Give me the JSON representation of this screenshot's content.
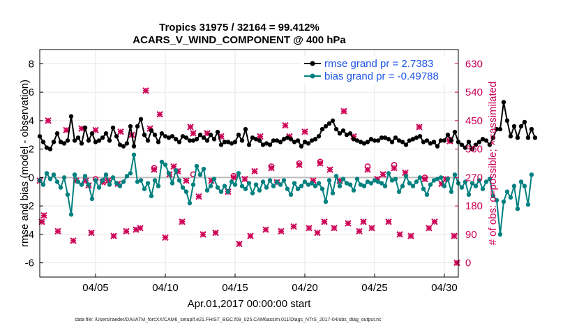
{
  "chart_data": {
    "type": "line",
    "title_line1": "Tropics 31975 / 32164 = 99.412%",
    "title_line2": "ACARS_V_WIND_COMPONENT @ 400 hPa",
    "xlabel": "Apr.01,2017 00:00:00 start",
    "ylabel_left": "rmse and bias (model - observation)",
    "ylabel_right": "# of obs: o=possible; ×=assimilated",
    "footer": "data file: /Users/raeder/DAI/ATM_forcXX/CAM6_setup/f.e21.FHIST_BGC.f09_025.CAM6assim.011/Diags_NTrS_2017-04/obs_diag_output.nc",
    "x_range_days": [
      1,
      31
    ],
    "y_left_range": [
      -7,
      9
    ],
    "y_left_ticks": [
      "-6",
      "-4",
      "-2",
      "0",
      "2",
      "4",
      "6",
      "8"
    ],
    "y_right_range": [
      -45,
      675
    ],
    "y_right_ticks": [
      "0",
      "90",
      "180",
      "270",
      "360",
      "450",
      "540",
      "630"
    ],
    "x_ticks": [
      {
        "day": 5,
        "label": "04/05"
      },
      {
        "day": 10,
        "label": "04/10"
      },
      {
        "day": 15,
        "label": "04/15"
      },
      {
        "day": 20,
        "label": "04/20"
      },
      {
        "day": 25,
        "label": "04/25"
      },
      {
        "day": 30,
        "label": "04/30"
      }
    ],
    "grid": true,
    "legend_position": "top-right",
    "colors": {
      "rmse": "#000000",
      "bias": "#00807f",
      "obs": "#cc0055",
      "legend_text": "#1f55e8",
      "zero_line": "#bbbbbb"
    },
    "series": [
      {
        "name": "rmse grand pr = 2.7383",
        "axis": "left",
        "values": [
          2.9,
          2.5,
          2.1,
          2.0,
          2.5,
          3.1,
          2.5,
          2.4,
          2.6,
          4.3,
          2.6,
          2.8,
          2.4,
          3.5,
          2.6,
          3.1,
          2.5,
          2.6,
          2.8,
          3.1,
          2.6,
          3.5,
          2.9,
          2.3,
          2.2,
          2.4,
          3.6,
          2.2,
          3.6,
          4.1,
          3.0,
          2.6,
          3.3,
          3.0,
          2.5,
          3.1,
          2.9,
          2.8,
          2.9,
          2.7,
          2.5,
          2.9,
          2.8,
          2.6,
          2.6,
          2.7,
          3.0,
          2.8,
          2.6,
          3.0,
          2.7,
          3.2,
          2.3,
          2.5,
          2.5,
          2.4,
          2.5,
          3.0,
          2.6,
          3.4,
          2.3,
          2.8,
          2.7,
          2.6,
          2.3,
          2.4,
          2.3,
          2.6,
          2.6,
          2.5,
          2.7,
          2.8,
          2.7,
          2.5,
          2.6,
          2.2,
          2.5,
          2.4,
          2.6,
          2.7,
          2.9,
          3.4,
          3.6,
          3.8,
          4.0,
          3.4,
          3.1,
          3.3,
          3.0,
          3.1,
          2.7,
          2.6,
          2.5,
          2.4,
          2.5,
          2.7,
          2.6,
          2.6,
          2.8,
          2.8,
          2.7,
          2.5,
          2.8,
          2.6,
          2.5,
          2.3,
          2.6,
          2.7,
          2.8,
          2.9,
          2.5,
          2.6,
          2.4,
          2.5,
          2.2,
          2.6,
          2.6,
          3.0,
          2.6,
          3.2,
          2.5,
          2.3,
          2.1,
          2.5,
          2.0,
          2.3,
          2.5,
          2.7,
          2.6,
          2.3,
          2.8,
          3.4,
          3.4,
          5.3,
          4.0,
          2.9,
          3.6,
          2.8,
          3.6,
          3.9,
          2.8,
          3.4,
          2.8
        ],
        "x_start": 1.0,
        "x_step": 0.25
      },
      {
        "name": "bias grand pr = -0.49788",
        "axis": "left",
        "values": [
          -0.2,
          -0.5,
          0.3,
          -0.1,
          0.2,
          -0.3,
          -0.7,
          0.0,
          -1.2,
          -2.6,
          0.2,
          -0.3,
          -0.5,
          0.1,
          -0.5,
          -1.5,
          -0.2,
          -0.7,
          -0.2,
          0.2,
          -0.5,
          0.0,
          -0.4,
          -0.6,
          -0.3,
          0.1,
          0.3,
          1.6,
          -0.3,
          -0.2,
          -0.8,
          -0.4,
          -1.3,
          -0.2,
          -0.6,
          1.1,
          0.9,
          0.3,
          -0.4,
          0.5,
          -0.2,
          -0.7,
          -1.0,
          -1.8,
          -0.5,
          0.8,
          0.2,
          0.6,
          -0.9,
          -0.6,
          -0.1,
          -0.7,
          -1.0,
          -0.6,
          -1.0,
          -0.3,
          -0.5,
          0.3,
          -0.6,
          -0.8,
          -0.4,
          -1.1,
          -0.5,
          -0.9,
          -0.3,
          -0.7,
          -0.2,
          -0.6,
          -0.3,
          -0.5,
          -0.2,
          -0.8,
          -1.2,
          -0.4,
          -0.8,
          -0.6,
          -0.3,
          -0.5,
          -0.4,
          -0.6,
          -0.4,
          -0.8,
          -1.7,
          -0.2,
          -1.1,
          0.1,
          -0.6,
          -0.1,
          -0.4,
          -0.5,
          -0.9,
          -0.1,
          -0.5,
          -0.6,
          -0.3,
          -0.4,
          -0.2,
          -0.3,
          -0.4,
          -0.6,
          0.3,
          -0.2,
          -0.1,
          -1.0,
          -0.6,
          0.1,
          -0.4,
          -0.6,
          -0.3,
          0.0,
          -0.8,
          -1.2,
          -0.5,
          -0.2,
          -0.1,
          0.0,
          -0.6,
          -0.1,
          -1.0,
          0.2,
          -0.4,
          -0.7,
          -0.3,
          -1.2,
          -0.4,
          -0.6,
          -0.2,
          -0.8,
          -0.3,
          -0.1,
          -1.3,
          -1.6,
          -4.0,
          -1.7,
          -1.0,
          -1.4,
          -0.6,
          -2.2,
          -0.3,
          -0.6,
          -1.9,
          0.2
        ],
        "x_start": 1.0,
        "x_step": 0.25
      },
      {
        "name": "obs assimilated",
        "axis": "right",
        "marker": "x",
        "points": [
          [
            1.0,
            260
          ],
          [
            1.15,
            130
          ],
          [
            1.3,
            150
          ],
          [
            1.6,
            450
          ],
          [
            2.3,
            100
          ],
          [
            2.9,
            420
          ],
          [
            3.4,
            70
          ],
          [
            3.6,
            260
          ],
          [
            4.0,
            425
          ],
          [
            4.3,
            260
          ],
          [
            4.5,
            245
          ],
          [
            4.7,
            95
          ],
          [
            5.0,
            420
          ],
          [
            5.5,
            255
          ],
          [
            5.9,
            260
          ],
          [
            6.3,
            85
          ],
          [
            6.6,
            250
          ],
          [
            6.8,
            415
          ],
          [
            7.2,
            100
          ],
          [
            7.6,
            405
          ],
          [
            7.9,
            105
          ],
          [
            8.2,
            110
          ],
          [
            8.6,
            545
          ],
          [
            8.9,
            425
          ],
          [
            9.2,
            295
          ],
          [
            9.6,
            470
          ],
          [
            10.0,
            80
          ],
          [
            10.3,
            280
          ],
          [
            10.6,
            305
          ],
          [
            10.9,
            290
          ],
          [
            11.2,
            130
          ],
          [
            11.5,
            260
          ],
          [
            11.8,
            430
          ],
          [
            12.0,
            410
          ],
          [
            12.4,
            210
          ],
          [
            12.7,
            90
          ],
          [
            13.0,
            410
          ],
          [
            13.3,
            260
          ],
          [
            13.6,
            95
          ],
          [
            14.0,
            400
          ],
          [
            14.5,
            225
          ],
          [
            14.9,
            270
          ],
          [
            15.3,
            60
          ],
          [
            15.7,
            265
          ],
          [
            16.1,
            85
          ],
          [
            16.4,
            290
          ],
          [
            16.8,
            400
          ],
          [
            17.2,
            105
          ],
          [
            17.6,
            300
          ],
          [
            18.0,
            255
          ],
          [
            18.3,
            100
          ],
          [
            18.6,
            435
          ],
          [
            18.9,
            400
          ],
          [
            19.2,
            115
          ],
          [
            19.6,
            310
          ],
          [
            20.0,
            415
          ],
          [
            20.3,
            110
          ],
          [
            20.6,
            260
          ],
          [
            20.9,
            95
          ],
          [
            21.1,
            315
          ],
          [
            21.4,
            130
          ],
          [
            21.8,
            295
          ],
          [
            22.1,
            110
          ],
          [
            22.5,
            260
          ],
          [
            22.8,
            480
          ],
          [
            23.1,
            125
          ],
          [
            23.5,
            400
          ],
          [
            23.9,
            100
          ],
          [
            24.2,
            130
          ],
          [
            24.5,
            295
          ],
          [
            24.8,
            110
          ],
          [
            25.2,
            265
          ],
          [
            25.6,
            280
          ],
          [
            26.0,
            130
          ],
          [
            26.4,
            300
          ],
          [
            26.8,
            90
          ],
          [
            27.2,
            285
          ],
          [
            27.6,
            85
          ],
          [
            28.2,
            430
          ],
          [
            28.6,
            265
          ],
          [
            28.9,
            110
          ],
          [
            29.3,
            130
          ],
          [
            29.8,
            250
          ],
          [
            30.1,
            265
          ],
          [
            30.4,
            385
          ],
          [
            30.7,
            85
          ],
          [
            30.9,
            0
          ]
        ]
      },
      {
        "name": "obs possible",
        "axis": "right",
        "marker": "o",
        "points": [
          [
            5.0,
            265
          ],
          [
            9.2,
            300
          ],
          [
            12.0,
            280
          ],
          [
            14.9,
            275
          ],
          [
            17.6,
            305
          ],
          [
            19.6,
            315
          ],
          [
            21.1,
            320
          ],
          [
            24.5,
            305
          ],
          [
            26.4,
            310
          ],
          [
            28.6,
            270
          ],
          [
            30.4,
            390
          ]
        ]
      }
    ],
    "legend": [
      "rmse grand pr = 2.7383",
      "bias grand pr = -0.49788"
    ]
  }
}
